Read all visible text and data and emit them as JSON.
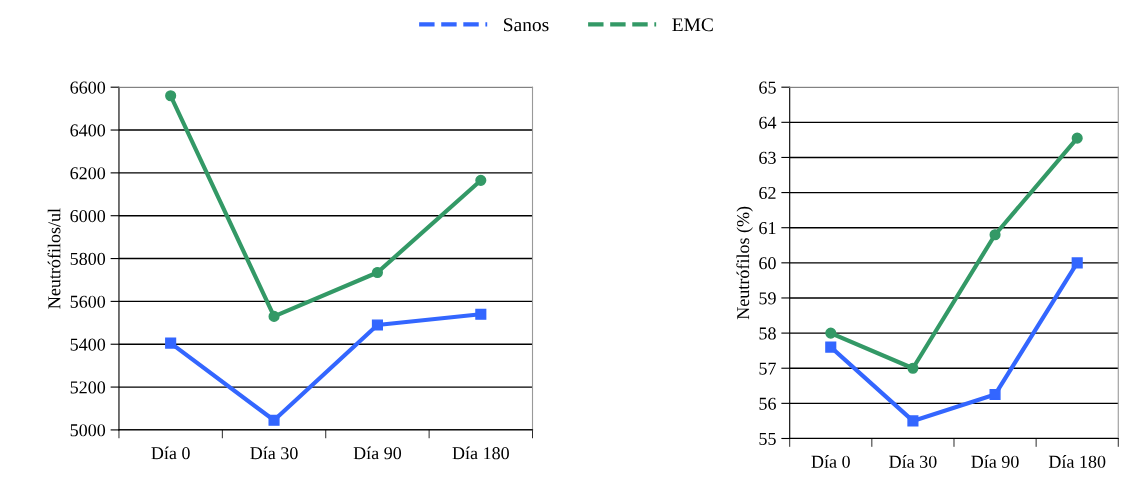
{
  "chart_data": [
    {
      "type": "line",
      "ylabel": "Neutrófilos/ul",
      "categories": [
        "Día 0",
        "Día 30",
        "Día 90",
        "Día 180"
      ],
      "legend": "top",
      "grid": "y",
      "ylim": [
        5000,
        6600
      ],
      "yticks": [
        5000,
        5200,
        5400,
        5600,
        5800,
        6000,
        6200,
        6400,
        6600
      ],
      "series": [
        {
          "name": "Sanos",
          "color": "#3366ff",
          "marker": "square",
          "values": [
            5405,
            5045,
            5490,
            5540
          ]
        },
        {
          "name": "EMC",
          "color": "#339966",
          "marker": "circle",
          "values": [
            6560,
            5530,
            5735,
            6165
          ]
        }
      ]
    },
    {
      "type": "line",
      "ylabel": "Neutrófilos (%)",
      "categories": [
        "Día 0",
        "Día 30",
        "Día 90",
        "Día 180"
      ],
      "grid": "y",
      "ylim": [
        55,
        65
      ],
      "yticks": [
        55,
        56,
        57,
        58,
        59,
        60,
        61,
        62,
        63,
        64,
        65
      ],
      "series": [
        {
          "color": "#3366ff",
          "marker": "square",
          "values": [
            57.6,
            55.5,
            56.25,
            60.0
          ]
        },
        {
          "color": "#339966",
          "marker": "circle",
          "values": [
            58.0,
            57.0,
            60.8,
            63.55
          ]
        }
      ]
    }
  ]
}
